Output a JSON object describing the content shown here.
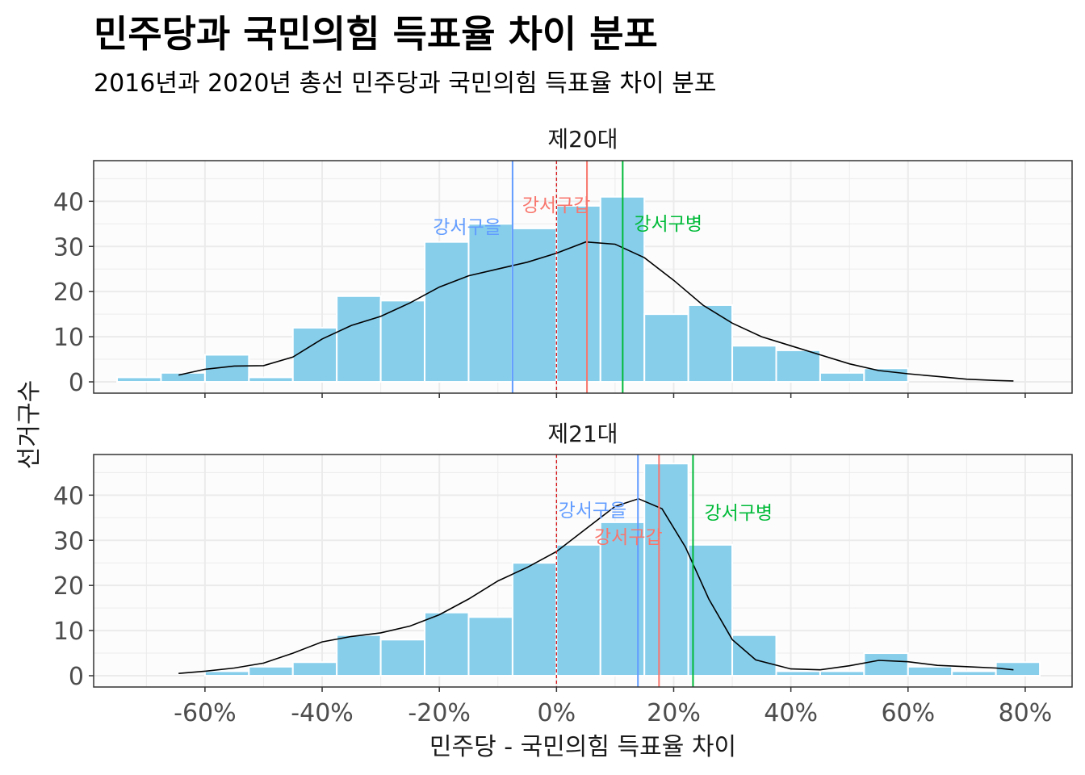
{
  "chart_data": {
    "type": "bar",
    "title": "민주당과 국민의힘 득표율 차이 분포",
    "subtitle": "2016년과 2020년 총선 민주당과 국민의힘 득표율 차이 분포",
    "xlabel": "민주당 - 국민의힘 득표율 차이",
    "ylabel": "선거구수",
    "xlim": [
      -0.79,
      0.88
    ],
    "ylim": [
      -2.5,
      49
    ],
    "x_ticks": [
      -0.6,
      -0.4,
      -0.2,
      0.0,
      0.2,
      0.4,
      0.6,
      0.8
    ],
    "x_tick_labels": [
      "-60%",
      "-40%",
      "-20%",
      "0%",
      "20%",
      "40%",
      "60%",
      "80%"
    ],
    "y_ticks": [
      0,
      10,
      20,
      30,
      40
    ],
    "y_tick_labels": [
      "0",
      "10",
      "20",
      "30",
      "40"
    ],
    "bin_width": 0.075,
    "bin_centers": [
      -0.7125,
      -0.6375,
      -0.5625,
      -0.4875,
      -0.4125,
      -0.3375,
      -0.2625,
      -0.1875,
      -0.1125,
      -0.0375,
      0.0375,
      0.1125,
      0.1875,
      0.2625,
      0.3375,
      0.4125,
      0.4875,
      0.5625,
      0.6375,
      0.7125,
      0.7875
    ],
    "grid": true,
    "reference_line_x": 0.0,
    "colors": {
      "bar_fill": "#87CEEB",
      "bar_stroke": "#ffffff",
      "panel_bg": "#fcfcfc",
      "grid": "#ebebeb",
      "density": "#000000",
      "reference": "#d7191c"
    },
    "panels": [
      {
        "label": "제20대",
        "counts": [
          1,
          2,
          6,
          1,
          12,
          19,
          18,
          31,
          35,
          34,
          39,
          41,
          15,
          17,
          8,
          7,
          2,
          3,
          0,
          0,
          0
        ],
        "density": [
          [
            -0.645,
            1.5
          ],
          [
            -0.6,
            2.8
          ],
          [
            -0.55,
            3.5
          ],
          [
            -0.5,
            3.6
          ],
          [
            -0.45,
            5.5
          ],
          [
            -0.4,
            9.5
          ],
          [
            -0.35,
            12.5
          ],
          [
            -0.3,
            14.5
          ],
          [
            -0.25,
            17.5
          ],
          [
            -0.2,
            21
          ],
          [
            -0.15,
            23.5
          ],
          [
            -0.1,
            25
          ],
          [
            -0.05,
            26.5
          ],
          [
            0.0,
            28.5
          ],
          [
            0.05,
            31
          ],
          [
            0.1,
            30.5
          ],
          [
            0.15,
            27.5
          ],
          [
            0.2,
            22.5
          ],
          [
            0.25,
            17
          ],
          [
            0.3,
            13
          ],
          [
            0.35,
            10
          ],
          [
            0.4,
            8
          ],
          [
            0.45,
            6
          ],
          [
            0.5,
            4
          ],
          [
            0.55,
            2.5
          ],
          [
            0.6,
            1.8
          ],
          [
            0.65,
            1.2
          ],
          [
            0.7,
            0.6
          ],
          [
            0.75,
            0.3
          ],
          [
            0.78,
            0.2
          ]
        ],
        "districts": [
          {
            "name": "강서구을",
            "x": -0.075,
            "color": "#619CFF"
          },
          {
            "name": "강서구갑",
            "x": 0.052,
            "color": "#F8766D"
          },
          {
            "name": "강서구병",
            "x": 0.113,
            "color": "#00BA38"
          }
        ]
      },
      {
        "label": "제21대",
        "counts": [
          0,
          0,
          1,
          2,
          3,
          9,
          8,
          14,
          13,
          25,
          29,
          34,
          47,
          29,
          9,
          1,
          1,
          5,
          2,
          1,
          3
        ],
        "density": [
          [
            -0.645,
            0.5
          ],
          [
            -0.6,
            1
          ],
          [
            -0.55,
            1.7
          ],
          [
            -0.5,
            2.8
          ],
          [
            -0.45,
            5
          ],
          [
            -0.4,
            7.5
          ],
          [
            -0.35,
            8.7
          ],
          [
            -0.3,
            9.5
          ],
          [
            -0.25,
            11
          ],
          [
            -0.2,
            13.5
          ],
          [
            -0.15,
            17
          ],
          [
            -0.1,
            21
          ],
          [
            -0.05,
            24
          ],
          [
            0.0,
            27.5
          ],
          [
            0.05,
            32.5
          ],
          [
            0.1,
            37.5
          ],
          [
            0.14,
            39.2
          ],
          [
            0.18,
            37
          ],
          [
            0.22,
            28.5
          ],
          [
            0.26,
            17
          ],
          [
            0.3,
            8
          ],
          [
            0.34,
            3.5
          ],
          [
            0.4,
            1.5
          ],
          [
            0.45,
            1.3
          ],
          [
            0.5,
            2.2
          ],
          [
            0.55,
            3.4
          ],
          [
            0.6,
            3.1
          ],
          [
            0.65,
            2.3
          ],
          [
            0.7,
            2
          ],
          [
            0.75,
            1.7
          ],
          [
            0.78,
            1.3
          ]
        ],
        "districts": [
          {
            "name": "강서구을",
            "x": 0.139,
            "color": "#619CFF"
          },
          {
            "name": "강서구갑",
            "x": 0.175,
            "color": "#F8766D"
          },
          {
            "name": "강서구병",
            "x": 0.233,
            "color": "#00BA38"
          }
        ]
      }
    ]
  }
}
